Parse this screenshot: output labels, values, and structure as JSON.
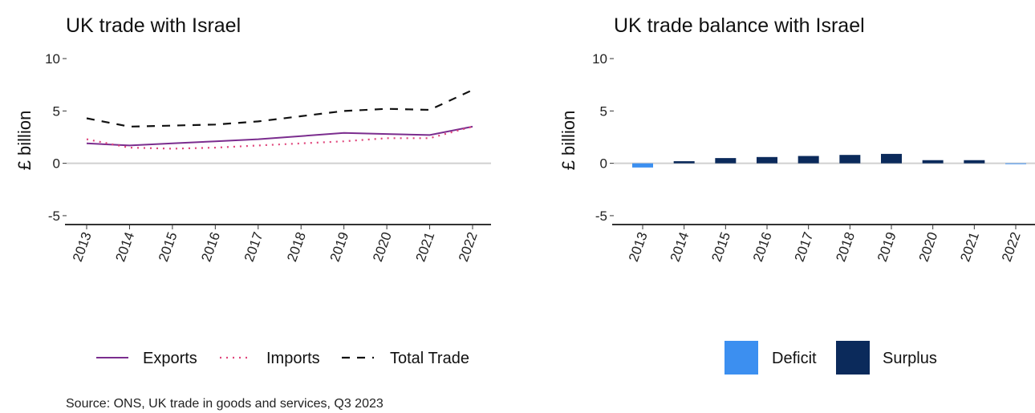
{
  "chart_data": [
    {
      "type": "line",
      "title": "UK trade with Israel",
      "ylabel": "£ billion",
      "xlabel": "",
      "ylim": [
        -6,
        11
      ],
      "yticks": [
        -5,
        0,
        5,
        10
      ],
      "x": [
        "2013",
        "2014",
        "2015",
        "2016",
        "2017",
        "2018",
        "2019",
        "2020",
        "2021",
        "2022"
      ],
      "series": [
        {
          "name": "Exports",
          "color": "#7B2D8E",
          "style": "solid",
          "values": [
            1.9,
            1.7,
            1.9,
            2.1,
            2.3,
            2.6,
            2.9,
            2.8,
            2.7,
            3.5
          ]
        },
        {
          "name": "Imports",
          "color": "#E0457B",
          "style": "dotted",
          "values": [
            2.3,
            1.5,
            1.4,
            1.5,
            1.7,
            1.9,
            2.1,
            2.4,
            2.4,
            3.5
          ]
        },
        {
          "name": "Total Trade",
          "color": "#111111",
          "style": "dashed",
          "values": [
            4.3,
            3.5,
            3.6,
            3.7,
            4.0,
            4.5,
            5.0,
            5.2,
            5.1,
            7.0
          ]
        }
      ],
      "legend_position": "bottom"
    },
    {
      "type": "bar",
      "title": "UK trade balance with Israel",
      "ylabel": "£ billion",
      "xlabel": "",
      "ylim": [
        -6,
        11
      ],
      "yticks": [
        -5,
        0,
        5,
        10
      ],
      "categories": [
        "2013",
        "2014",
        "2015",
        "2016",
        "2017",
        "2018",
        "2019",
        "2020",
        "2021",
        "2022"
      ],
      "values": [
        -0.4,
        0.2,
        0.5,
        0.6,
        0.7,
        0.8,
        0.9,
        0.3,
        0.3,
        -0.05
      ],
      "legend": [
        {
          "name": "Deficit",
          "color": "#3C8FF0"
        },
        {
          "name": "Surplus",
          "color": "#0B2A5B"
        }
      ],
      "legend_position": "bottom"
    }
  ],
  "source": "Source: ONS, UK trade in goods and services, Q3 2023"
}
